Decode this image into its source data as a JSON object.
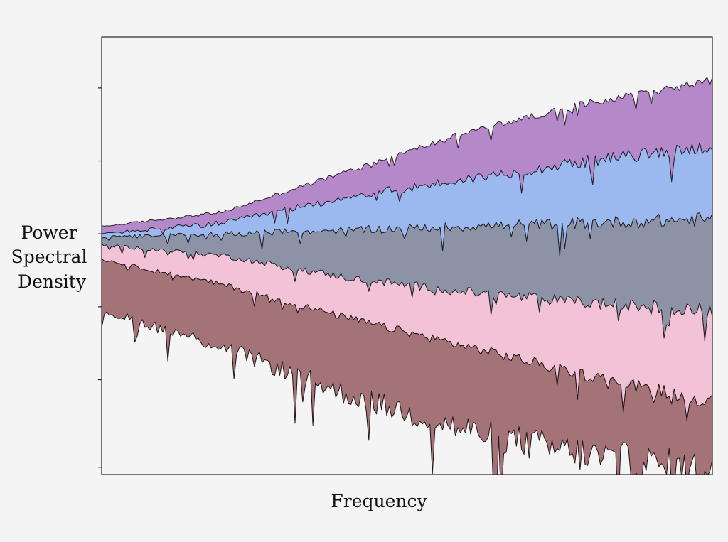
{
  "chart_data": {
    "type": "area",
    "title": "",
    "xlabel": "Frequency",
    "ylabel": [
      "Power",
      "Spectral",
      "Density"
    ],
    "grid": false,
    "legend": "none",
    "x_tick_labels": false,
    "y_tick_labels": false,
    "x_scale": "log",
    "y_scale": "log",
    "xlim": [
      0,
      1
    ],
    "ylim": [
      -6,
      6
    ],
    "noise_amplitude": [
      0.08,
      0.4
    ],
    "series": [
      {
        "color": "#b588c9",
        "stroke": "#2a1f2a",
        "upper": [
          [
            0,
            0.8
          ],
          [
            0.2,
            1.2
          ],
          [
            0.4,
            2.3
          ],
          [
            0.6,
            3.4
          ],
          [
            0.8,
            4.2
          ],
          [
            1,
            4.8
          ]
        ],
        "lower": [
          [
            0,
            0.6
          ],
          [
            0.2,
            0.9
          ],
          [
            0.4,
            1.6
          ],
          [
            0.6,
            2.1
          ],
          [
            0.8,
            2.6
          ],
          [
            1,
            3.0
          ]
        ]
      },
      {
        "color": "#9bb8ef",
        "stroke": "#1f2330",
        "upper": [
          [
            0,
            0.6
          ],
          [
            0.2,
            0.9
          ],
          [
            0.4,
            1.6
          ],
          [
            0.6,
            2.1
          ],
          [
            0.8,
            2.6
          ],
          [
            1,
            3.0
          ]
        ],
        "lower": [
          [
            0,
            0.5
          ],
          [
            0.2,
            0.6
          ],
          [
            0.4,
            0.7
          ],
          [
            0.6,
            0.8
          ],
          [
            0.8,
            0.9
          ],
          [
            1,
            1.0
          ]
        ]
      },
      {
        "color": "#8c93a6",
        "stroke": "#1f1f24",
        "upper": [
          [
            0,
            0.5
          ],
          [
            0.2,
            0.6
          ],
          [
            0.4,
            0.7
          ],
          [
            0.6,
            0.8
          ],
          [
            0.8,
            0.9
          ],
          [
            1,
            1.0
          ]
        ],
        "lower": [
          [
            0,
            0.3
          ],
          [
            0.2,
            0.0
          ],
          [
            0.4,
            -0.6
          ],
          [
            0.6,
            -1.0
          ],
          [
            0.8,
            -1.3
          ],
          [
            1,
            -1.5
          ]
        ]
      },
      {
        "color": "#f2c3d6",
        "stroke": "#2a1f24",
        "upper": [
          [
            0,
            0.3
          ],
          [
            0.2,
            0.0
          ],
          [
            0.4,
            -0.6
          ],
          [
            0.6,
            -1.0
          ],
          [
            0.8,
            -1.3
          ],
          [
            1,
            -1.5
          ]
        ],
        "lower": [
          [
            0,
            -0.1
          ],
          [
            0.2,
            -0.8
          ],
          [
            0.4,
            -1.7
          ],
          [
            0.6,
            -2.5
          ],
          [
            0.8,
            -3.3
          ],
          [
            1,
            -4.0
          ]
        ]
      },
      {
        "color": "#a47378",
        "stroke": "#1f1416",
        "upper": [
          [
            0,
            -0.1
          ],
          [
            0.2,
            -0.8
          ],
          [
            0.4,
            -1.7
          ],
          [
            0.6,
            -2.5
          ],
          [
            0.8,
            -3.3
          ],
          [
            1,
            -4.0
          ]
        ],
        "lower": [
          [
            0,
            -1.5
          ],
          [
            0.2,
            -2.5
          ],
          [
            0.4,
            -3.8
          ],
          [
            0.6,
            -4.8
          ],
          [
            0.8,
            -5.5
          ],
          [
            1,
            -6.0
          ]
        ]
      }
    ]
  }
}
